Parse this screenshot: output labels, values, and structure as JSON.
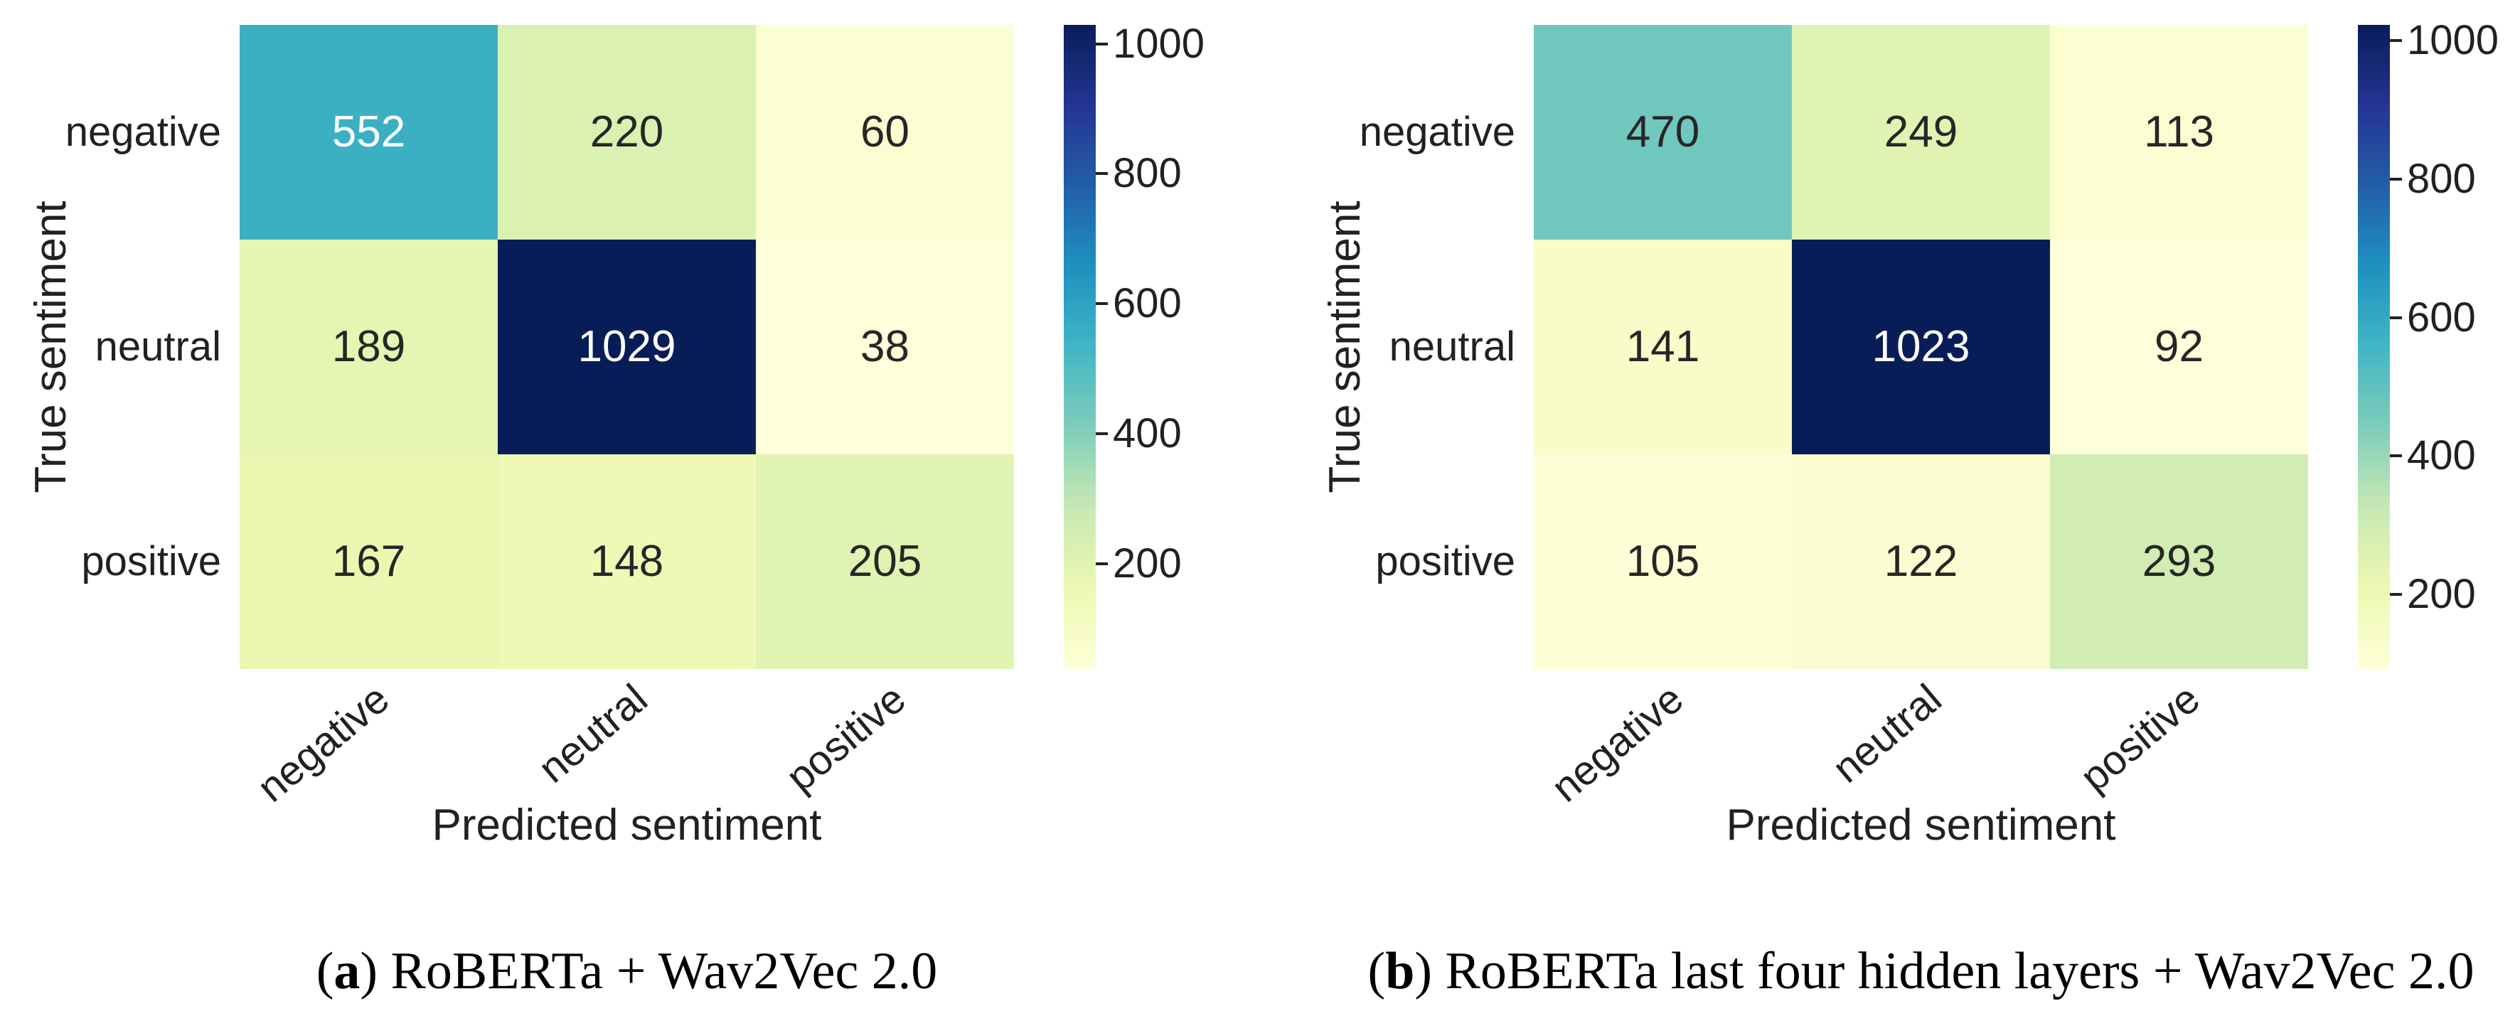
{
  "chart_data": [
    {
      "type": "heatmap",
      "panel_label": "a",
      "caption": {
        "open": "(",
        "letter": "a",
        "rest": ") RoBERTa + Wav2Vec 2.0"
      },
      "xlabel": "Predicted sentiment",
      "ylabel": "True sentiment",
      "x_categories": [
        "negative",
        "neutral",
        "positive"
      ],
      "y_categories": [
        "negative",
        "neutral",
        "positive"
      ],
      "values": [
        [
          552,
          220,
          60
        ],
        [
          189,
          1029,
          38
        ],
        [
          167,
          148,
          205
        ]
      ],
      "vmin": 38,
      "vmax": 1029,
      "colorbar_ticks": [
        200,
        400,
        600,
        800,
        1000
      ],
      "colormap": "YlGnBu",
      "legend_position": "right-colorbar",
      "grid": false
    },
    {
      "type": "heatmap",
      "panel_label": "b",
      "caption": {
        "open": "(",
        "letter": "b",
        "rest": ") RoBERTa last four hidden layers + Wav2Vec 2.0"
      },
      "xlabel": "Predicted sentiment",
      "ylabel": "True sentiment",
      "x_categories": [
        "negative",
        "neutral",
        "positive"
      ],
      "y_categories": [
        "negative",
        "neutral",
        "positive"
      ],
      "values": [
        [
          470,
          249,
          113
        ],
        [
          141,
          1023,
          92
        ],
        [
          105,
          122,
          293
        ]
      ],
      "vmin": 92,
      "vmax": 1023,
      "colorbar_ticks": [
        200,
        400,
        600,
        800,
        1000
      ],
      "colormap": "YlGnBu",
      "legend_position": "right-colorbar",
      "grid": false
    }
  ],
  "style": {
    "background": "#ffffff",
    "colormap_stops": [
      "#ffffd9",
      "#edf8b1",
      "#c7e9b4",
      "#7fcdbb",
      "#41b6c4",
      "#1d91c0",
      "#225ea8",
      "#253494",
      "#081d58"
    ],
    "annot_text_light": "#ffffff",
    "annot_text_dark": "#262626",
    "tick_color": "#212121",
    "caption_color": "#000000",
    "luminance_threshold": 0.408
  }
}
